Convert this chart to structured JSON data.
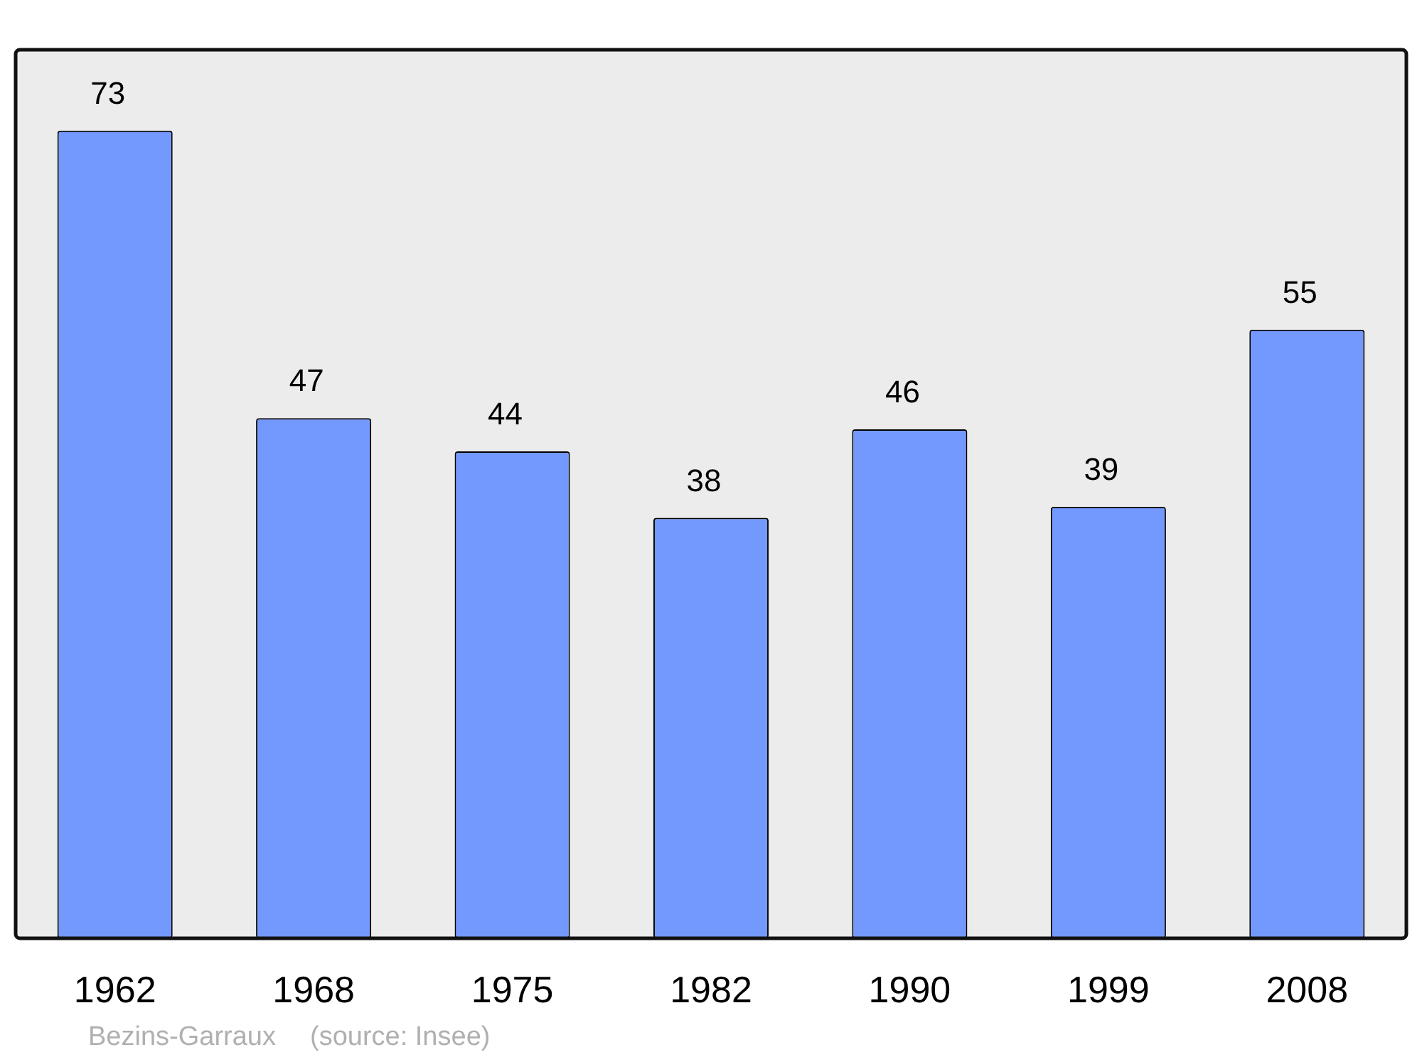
{
  "chart_data": {
    "type": "bar",
    "categories": [
      "1962",
      "1968",
      "1975",
      "1982",
      "1990",
      "1999",
      "2008"
    ],
    "values": [
      73,
      47,
      44,
      38,
      46,
      39,
      55
    ],
    "color": "#7399ff",
    "data_labels": true,
    "grid": false,
    "legend": false,
    "annotations": [
      "Bezins-Garraux",
      "(source: Insee)"
    ]
  }
}
